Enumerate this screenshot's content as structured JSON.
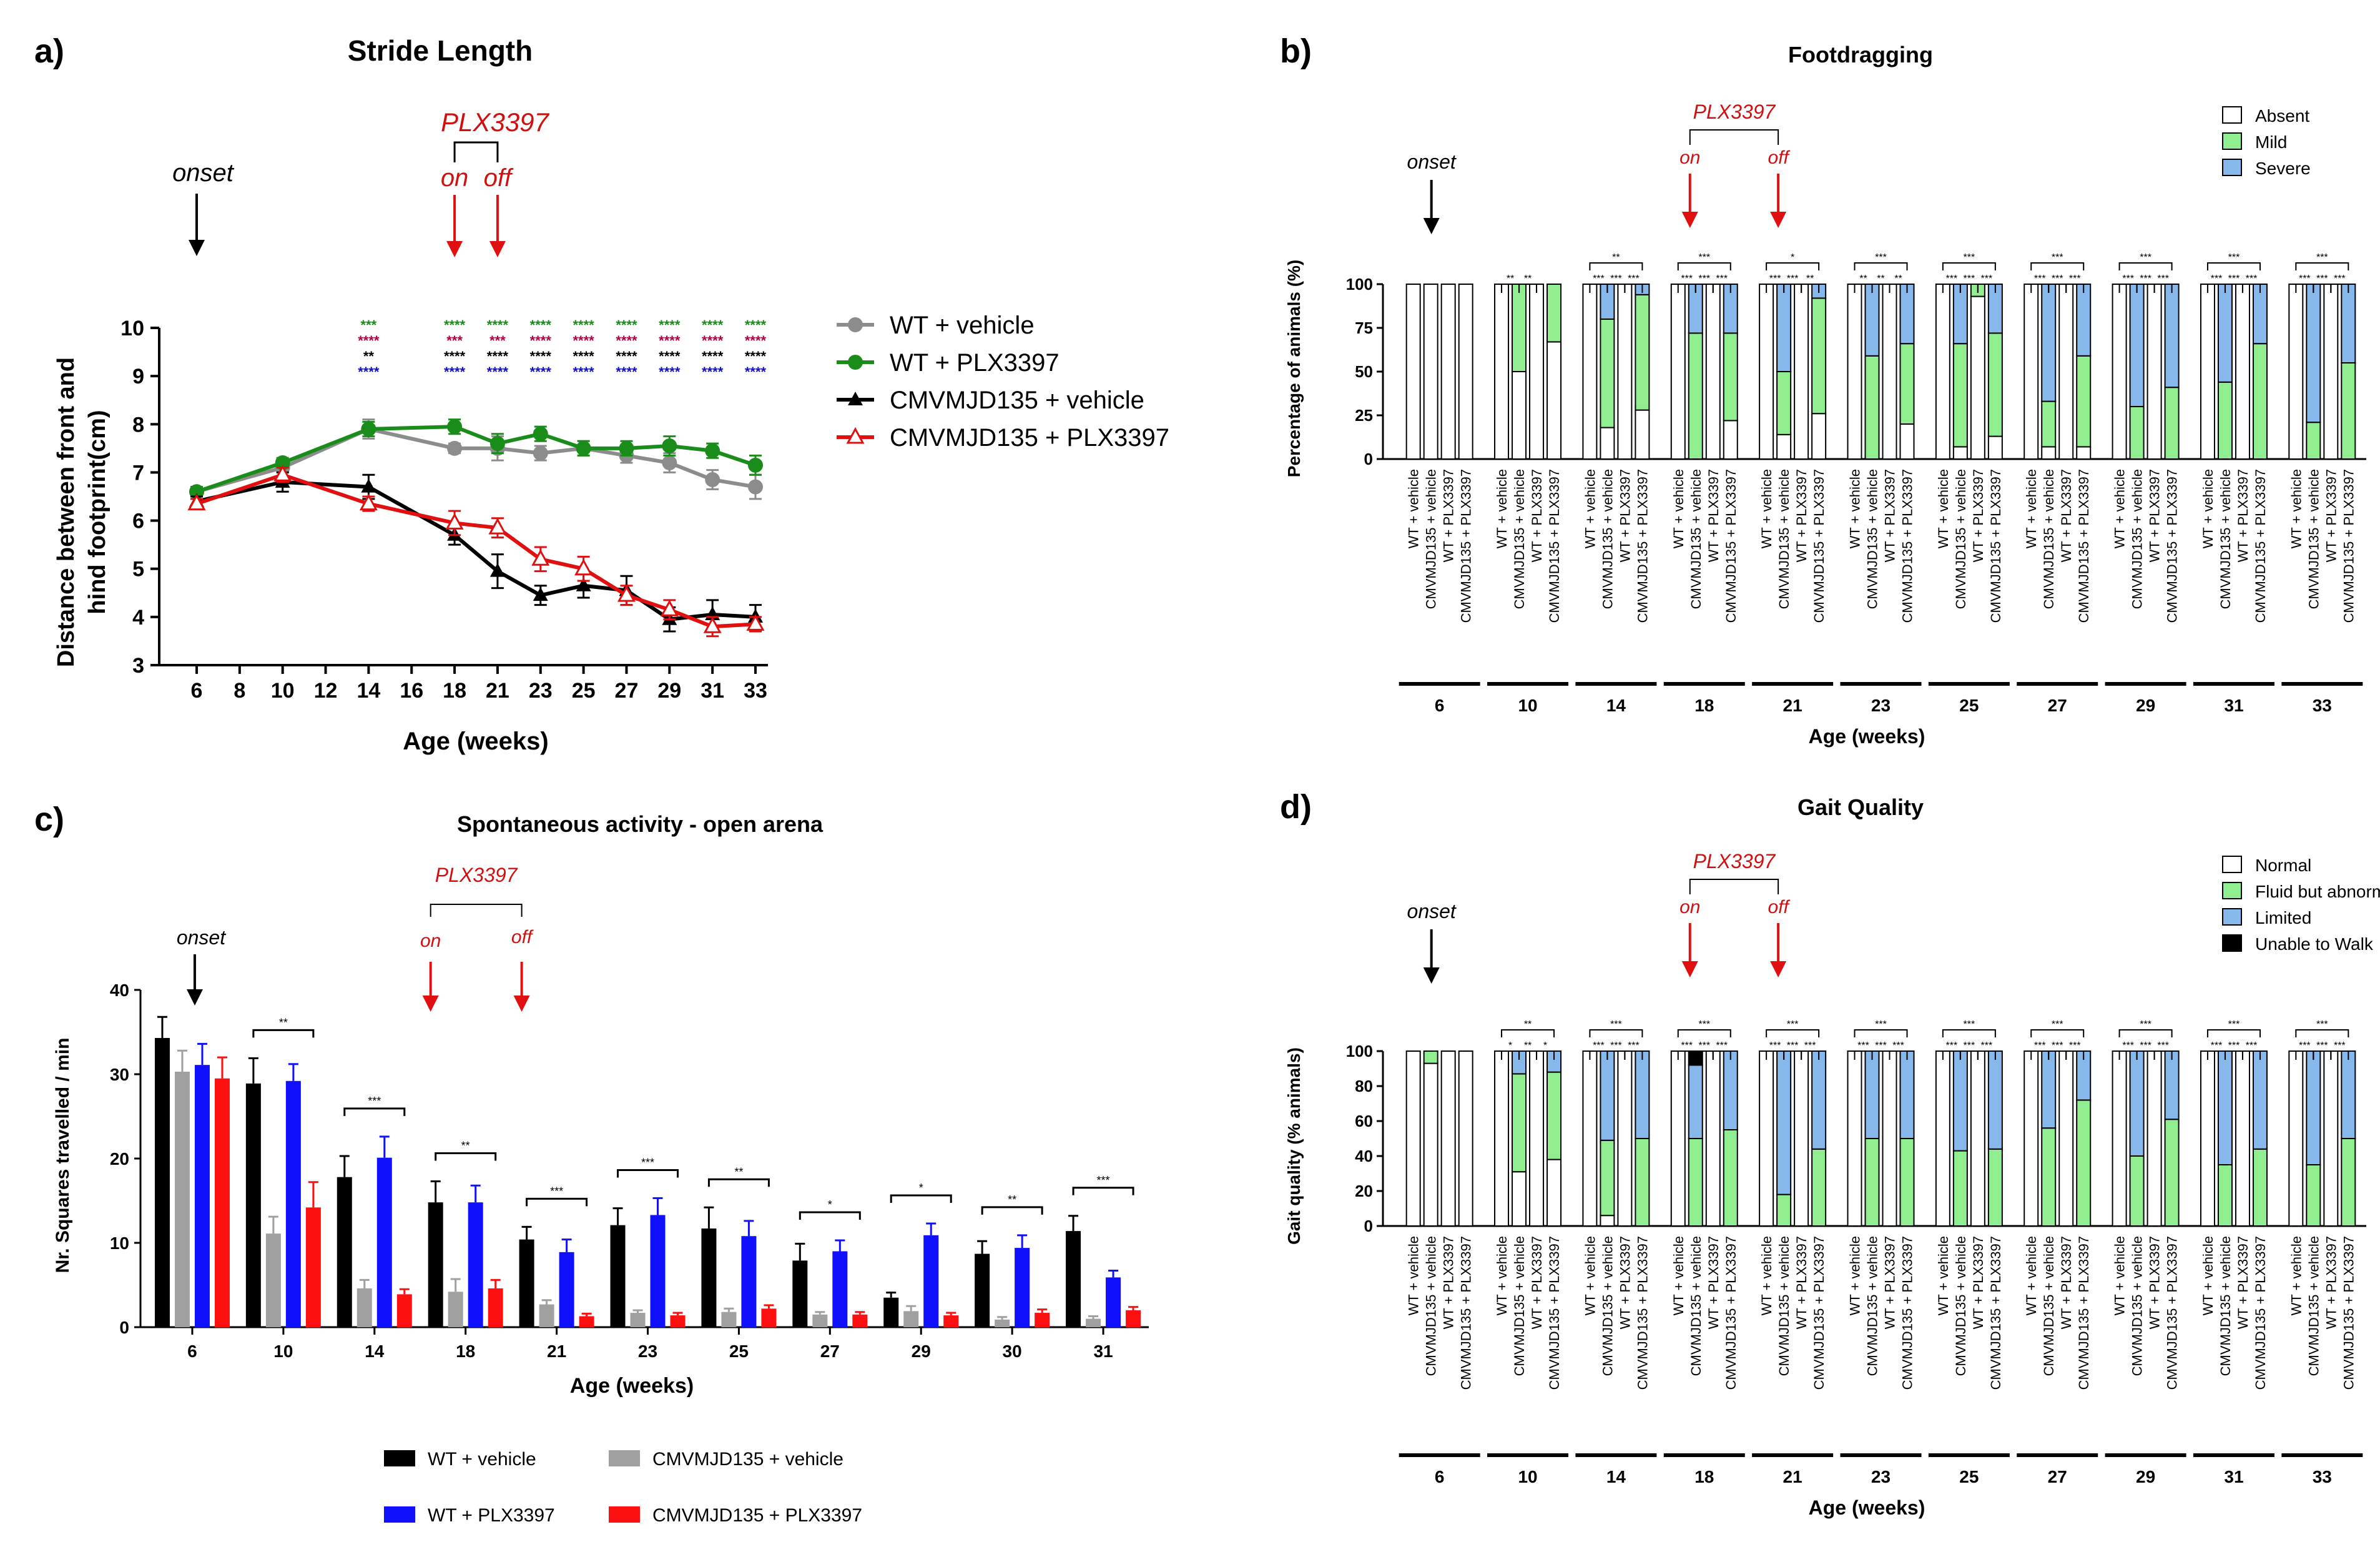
{
  "figure": {
    "panel_labels": [
      "a)",
      "b)",
      "c)",
      "d)"
    ]
  },
  "chart_data": [
    {
      "id": "a",
      "type": "line",
      "title": "Stride Length",
      "xlabel": "Age (weeks)",
      "ylabel_line1": "Distance between front and",
      "ylabel_line2": "hind footprint(cm)",
      "x_ticks": [
        6,
        8,
        10,
        12,
        14,
        16,
        18,
        21,
        23,
        25,
        27,
        29,
        31,
        33
      ],
      "y_ticks": [
        3,
        4,
        5,
        6,
        7,
        8,
        9,
        10
      ],
      "ylim": [
        3,
        10
      ],
      "annotations": {
        "onset": "onset",
        "drug": "PLX3397",
        "on": "on",
        "off": "off",
        "onset_x": 6,
        "on_x": 18,
        "off_x": 21
      },
      "series": [
        {
          "name": "WT + vehicle",
          "color": "#8c8c8c",
          "marker": "circle",
          "x": [
            6,
            10,
            14,
            18,
            21,
            23,
            25,
            27,
            29,
            31,
            33
          ],
          "values": [
            6.6,
            7.1,
            7.9,
            7.5,
            7.5,
            7.4,
            7.5,
            7.35,
            7.2,
            6.85,
            6.7
          ],
          "errors": [
            0.1,
            0.1,
            0.2,
            0.1,
            0.25,
            0.15,
            0.15,
            0.15,
            0.2,
            0.2,
            0.25
          ]
        },
        {
          "name": "WT + PLX3397",
          "color": "#1a8c1a",
          "marker": "circle",
          "x": [
            6,
            10,
            14,
            18,
            21,
            23,
            25,
            27,
            29,
            31,
            33
          ],
          "values": [
            6.6,
            7.2,
            7.9,
            7.95,
            7.6,
            7.8,
            7.5,
            7.5,
            7.55,
            7.45,
            7.15
          ],
          "errors": [
            0.1,
            0.1,
            0.15,
            0.15,
            0.2,
            0.15,
            0.15,
            0.15,
            0.2,
            0.15,
            0.2
          ]
        },
        {
          "name": "CMVMJD135 + vehicle",
          "color": "#000000",
          "marker": "triangle",
          "x": [
            6,
            10,
            14,
            18,
            21,
            23,
            25,
            27,
            29,
            31,
            33
          ],
          "values": [
            6.4,
            6.8,
            6.7,
            5.7,
            4.95,
            4.45,
            4.65,
            4.55,
            3.95,
            4.05,
            4.0
          ],
          "errors": [
            0.1,
            0.2,
            0.25,
            0.2,
            0.35,
            0.2,
            0.25,
            0.3,
            0.25,
            0.3,
            0.25
          ]
        },
        {
          "name": "CMVMJD135 + PLX3397",
          "color": "#e01010",
          "marker": "triangle-open",
          "x": [
            6,
            10,
            14,
            18,
            21,
            23,
            25,
            27,
            29,
            31,
            33
          ],
          "values": [
            6.35,
            6.95,
            6.35,
            5.95,
            5.85,
            5.2,
            5.0,
            4.45,
            4.15,
            3.8,
            3.85
          ],
          "errors": [
            0.1,
            0.15,
            0.15,
            0.25,
            0.2,
            0.25,
            0.25,
            0.2,
            0.2,
            0.2,
            0.15
          ]
        }
      ],
      "significance": {
        "x": [
          14,
          18,
          21,
          23,
          25,
          27,
          29,
          31,
          33
        ],
        "rows": [
          {
            "color": "#1a8c1a",
            "labels": [
              "***",
              "****",
              "****",
              "****",
              "****",
              "****",
              "****",
              "****",
              "****"
            ]
          },
          {
            "color": "#b0004a",
            "labels": [
              "****",
              "***",
              "***",
              "****",
              "****",
              "****",
              "****",
              "****",
              "****"
            ]
          },
          {
            "color": "#000000",
            "labels": [
              "**",
              "****",
              "****",
              "****",
              "****",
              "****",
              "****",
              "****",
              "****"
            ]
          },
          {
            "color": "#1010c0",
            "labels": [
              "****",
              "****",
              "****",
              "****",
              "****",
              "****",
              "****",
              "****",
              "****"
            ]
          }
        ]
      }
    },
    {
      "id": "b",
      "type": "bar",
      "stacked": true,
      "title": "Footdragging",
      "xlabel": "Age (weeks)",
      "ylabel": "Percentage of animals (%)",
      "y_ticks": [
        0,
        25,
        50,
        75,
        100
      ],
      "ylim": [
        0,
        100
      ],
      "annotations": {
        "onset": "onset",
        "drug": "PLX3397",
        "on": "on",
        "off": "off"
      },
      "groups": [
        "6",
        "10",
        "14",
        "18",
        "21",
        "23",
        "25",
        "27",
        "29",
        "31",
        "33"
      ],
      "bar_labels": [
        "WT + vehicle",
        "CMVMJD135 + vehicle",
        "WT + PLX3397",
        "CMVMJD135 + PLX3397"
      ],
      "categories": [
        "Absent",
        "Mild",
        "Severe"
      ],
      "colors": [
        "#ffffff",
        "#90ee90",
        "#87b8ec"
      ],
      "group_sig": [
        "",
        "",
        "**",
        "***",
        "*",
        "***",
        "***",
        "***",
        "***",
        "***",
        "***"
      ],
      "pair_sig": [
        [
          "",
          "",
          ""
        ],
        [
          "**",
          "**",
          ""
        ],
        [
          "***",
          "***",
          "***"
        ],
        [
          "***",
          "***",
          "***"
        ],
        [
          "***",
          "***",
          "**"
        ],
        [
          "**",
          "**",
          "**"
        ],
        [
          "***",
          "***",
          "***"
        ],
        [
          "***",
          "***",
          "***"
        ],
        [
          "***",
          "***",
          "***"
        ],
        [
          "***",
          "***",
          "***"
        ],
        [
          "***",
          "***",
          "***"
        ]
      ],
      "data": [
        [
          [
            100,
            0,
            0
          ],
          [
            100,
            0,
            0
          ],
          [
            100,
            0,
            0
          ],
          [
            100,
            0,
            0
          ]
        ],
        [
          [
            100,
            0,
            0
          ],
          [
            50,
            50,
            0
          ],
          [
            100,
            0,
            0
          ],
          [
            67,
            33,
            0
          ]
        ],
        [
          [
            100,
            0,
            0
          ],
          [
            18,
            62,
            20
          ],
          [
            100,
            0,
            0
          ],
          [
            28,
            66,
            6
          ]
        ],
        [
          [
            100,
            0,
            0
          ],
          [
            0,
            72,
            28
          ],
          [
            100,
            0,
            0
          ],
          [
            22,
            50,
            28
          ]
        ],
        [
          [
            100,
            0,
            0
          ],
          [
            14,
            36,
            50
          ],
          [
            100,
            0,
            0
          ],
          [
            26,
            66,
            8
          ]
        ],
        [
          [
            100,
            0,
            0
          ],
          [
            0,
            59,
            41
          ],
          [
            100,
            0,
            0
          ],
          [
            20,
            46,
            34
          ]
        ],
        [
          [
            100,
            0,
            0
          ],
          [
            7,
            59,
            34
          ],
          [
            93,
            7,
            0
          ],
          [
            13,
            59,
            28
          ]
        ],
        [
          [
            100,
            0,
            0
          ],
          [
            7,
            26,
            67
          ],
          [
            100,
            0,
            0
          ],
          [
            7,
            52,
            41
          ]
        ],
        [
          [
            100,
            0,
            0
          ],
          [
            0,
            30,
            70
          ],
          [
            100,
            0,
            0
          ],
          [
            0,
            41,
            59
          ]
        ],
        [
          [
            100,
            0,
            0
          ],
          [
            0,
            44,
            56
          ],
          [
            100,
            0,
            0
          ],
          [
            0,
            66,
            34
          ]
        ],
        [
          [
            100,
            0,
            0
          ],
          [
            0,
            21,
            79
          ],
          [
            100,
            0,
            0
          ],
          [
            0,
            55,
            45
          ]
        ]
      ]
    },
    {
      "id": "c",
      "type": "bar",
      "title": "Spontaneous activity - open arena",
      "xlabel": "Age (weeks)",
      "ylabel": "Nr. Squares travelled / min",
      "y_ticks": [
        0,
        10,
        20,
        30,
        40
      ],
      "ylim": [
        0,
        40
      ],
      "annotations": {
        "onset": "onset",
        "drug": "PLX3397",
        "on": "on",
        "off": "off"
      },
      "categories": [
        "6",
        "10",
        "14",
        "18",
        "21",
        "23",
        "25",
        "27",
        "29",
        "30",
        "31"
      ],
      "group_sig": [
        "",
        "**",
        "***",
        "**",
        "***",
        "***",
        "**",
        "*",
        "*",
        "**",
        "***"
      ],
      "series": [
        {
          "name": "WT + vehicle",
          "color": "#000000",
          "values": [
            34.3,
            28.9,
            17.8,
            14.8,
            10.4,
            12.1,
            11.7,
            7.9,
            3.5,
            8.7,
            11.4
          ],
          "errors": [
            2.5,
            3.0,
            2.5,
            2.5,
            1.5,
            2.0,
            2.5,
            2.0,
            0.6,
            1.5,
            1.8
          ]
        },
        {
          "name": "CMVMJD135 + vehicle",
          "color": "#a0a0a0",
          "values": [
            30.3,
            11.1,
            4.6,
            4.2,
            2.7,
            1.7,
            1.8,
            1.5,
            1.9,
            0.9,
            1.0
          ],
          "errors": [
            2.5,
            2.0,
            1.0,
            1.5,
            0.5,
            0.3,
            0.4,
            0.3,
            0.6,
            0.3,
            0.3
          ]
        },
        {
          "name": "WT + PLX3397",
          "color": "#1010ff",
          "values": [
            31.1,
            29.2,
            20.1,
            14.8,
            8.9,
            13.3,
            10.8,
            9.0,
            10.9,
            9.4,
            5.9
          ],
          "errors": [
            2.5,
            2.0,
            2.5,
            2.0,
            1.5,
            2.0,
            1.8,
            1.3,
            1.4,
            1.5,
            0.8
          ]
        },
        {
          "name": "CMVMJD135 + PLX3397",
          "color": "#ff1010",
          "values": [
            29.5,
            14.2,
            3.9,
            4.6,
            1.3,
            1.4,
            2.2,
            1.5,
            1.4,
            1.7,
            2.0
          ],
          "errors": [
            2.5,
            3.0,
            0.6,
            1.0,
            0.3,
            0.3,
            0.4,
            0.3,
            0.3,
            0.4,
            0.4
          ]
        }
      ]
    },
    {
      "id": "d",
      "type": "bar",
      "stacked": true,
      "title": "Gait Quality",
      "xlabel": "Age (weeks)",
      "ylabel": "Gait quality (% animals)",
      "y_ticks": [
        0,
        20,
        40,
        60,
        80,
        100
      ],
      "ylim": [
        0,
        100
      ],
      "annotations": {
        "onset": "onset",
        "drug": "PLX3397",
        "on": "on",
        "off": "off"
      },
      "groups": [
        "6",
        "10",
        "14",
        "18",
        "21",
        "23",
        "25",
        "27",
        "29",
        "31",
        "33"
      ],
      "bar_labels": [
        "WT + vehicle",
        "CMVMJD135 + vehicle",
        "WT + PLX3397",
        "CMVMJD135 + PLX3397"
      ],
      "categories": [
        "Normal",
        "Fluid but abnormal",
        "Limited",
        "Unable to Walk"
      ],
      "colors": [
        "#ffffff",
        "#90ee90",
        "#87b8ec",
        "#000000"
      ],
      "group_sig": [
        "",
        "**",
        "***",
        "***",
        "***",
        "***",
        "***",
        "***",
        "***",
        "***",
        "***"
      ],
      "pair_sig": [
        [
          "",
          "",
          ""
        ],
        [
          "*",
          "**",
          "*"
        ],
        [
          "***",
          "***",
          "***"
        ],
        [
          "***",
          "***",
          "***"
        ],
        [
          "***",
          "***",
          "***"
        ],
        [
          "***",
          "***",
          "***"
        ],
        [
          "***",
          "***",
          "***"
        ],
        [
          "***",
          "***",
          "***"
        ],
        [
          "***",
          "***",
          "***"
        ],
        [
          "***",
          "***",
          "***"
        ],
        [
          "***",
          "***",
          "***"
        ]
      ],
      "data": [
        [
          [
            100,
            0,
            0,
            0
          ],
          [
            93,
            7,
            0,
            0
          ],
          [
            100,
            0,
            0,
            0
          ],
          [
            100,
            0,
            0,
            0
          ]
        ],
        [
          [
            100,
            0,
            0,
            0
          ],
          [
            31,
            56,
            13,
            0
          ],
          [
            100,
            0,
            0,
            0
          ],
          [
            38,
            50,
            12,
            0
          ]
        ],
        [
          [
            100,
            0,
            0,
            0
          ],
          [
            6,
            43,
            51,
            0
          ],
          [
            100,
            0,
            0,
            0
          ],
          [
            0,
            50,
            50,
            0
          ]
        ],
        [
          [
            100,
            0,
            0,
            0
          ],
          [
            0,
            50,
            42,
            8
          ],
          [
            100,
            0,
            0,
            0
          ],
          [
            0,
            55,
            45,
            0
          ]
        ],
        [
          [
            100,
            0,
            0,
            0
          ],
          [
            0,
            18,
            82,
            0
          ],
          [
            100,
            0,
            0,
            0
          ],
          [
            0,
            44,
            56,
            0
          ]
        ],
        [
          [
            100,
            0,
            0,
            0
          ],
          [
            0,
            50,
            50,
            0
          ],
          [
            100,
            0,
            0,
            0
          ],
          [
            0,
            50,
            50,
            0
          ]
        ],
        [
          [
            100,
            0,
            0,
            0
          ],
          [
            0,
            43,
            57,
            0
          ],
          [
            100,
            0,
            0,
            0
          ],
          [
            0,
            44,
            56,
            0
          ]
        ],
        [
          [
            100,
            0,
            0,
            0
          ],
          [
            0,
            56,
            44,
            0
          ],
          [
            100,
            0,
            0,
            0
          ],
          [
            0,
            72,
            28,
            0
          ]
        ],
        [
          [
            100,
            0,
            0,
            0
          ],
          [
            0,
            40,
            60,
            0
          ],
          [
            100,
            0,
            0,
            0
          ],
          [
            0,
            61,
            39,
            0
          ]
        ],
        [
          [
            100,
            0,
            0,
            0
          ],
          [
            0,
            35,
            65,
            0
          ],
          [
            100,
            0,
            0,
            0
          ],
          [
            0,
            44,
            56,
            0
          ]
        ],
        [
          [
            100,
            0,
            0,
            0
          ],
          [
            0,
            35,
            65,
            0
          ],
          [
            100,
            0,
            0,
            0
          ],
          [
            0,
            50,
            50,
            0
          ]
        ]
      ]
    }
  ]
}
